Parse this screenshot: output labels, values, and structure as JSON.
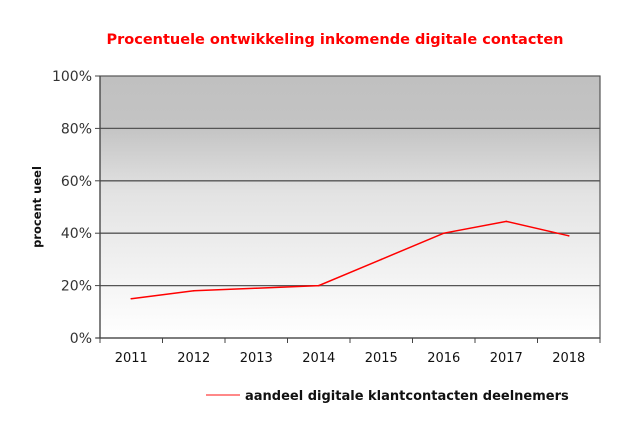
{
  "chart_data": {
    "type": "line",
    "title": "Procentuele ontwikkeling inkomende digitale contacten",
    "xlabel": "",
    "ylabel": "procent ueel",
    "categories": [
      "2011",
      "2012",
      "2013",
      "2014",
      "2015",
      "2016",
      "2017",
      "2018"
    ],
    "series": [
      {
        "name": "aandeel digitale klantcontacten deelnemers",
        "values": [
          15,
          18,
          19,
          20,
          30,
          40,
          44.5,
          39
        ],
        "color": "#ff0000"
      }
    ],
    "ylim": [
      0,
      100
    ],
    "yticks": [
      "0%",
      "20%",
      "40%",
      "60%",
      "80%",
      "100%"
    ],
    "ytick_values": [
      0,
      20,
      40,
      60,
      80,
      100
    ],
    "grid": true,
    "legend_position": "bottom",
    "colors": {
      "title": "#ff0000",
      "plot_bg_top": "#c0c0c0",
      "plot_bg_bottom": "#ffffff",
      "grid": "#555555"
    }
  }
}
